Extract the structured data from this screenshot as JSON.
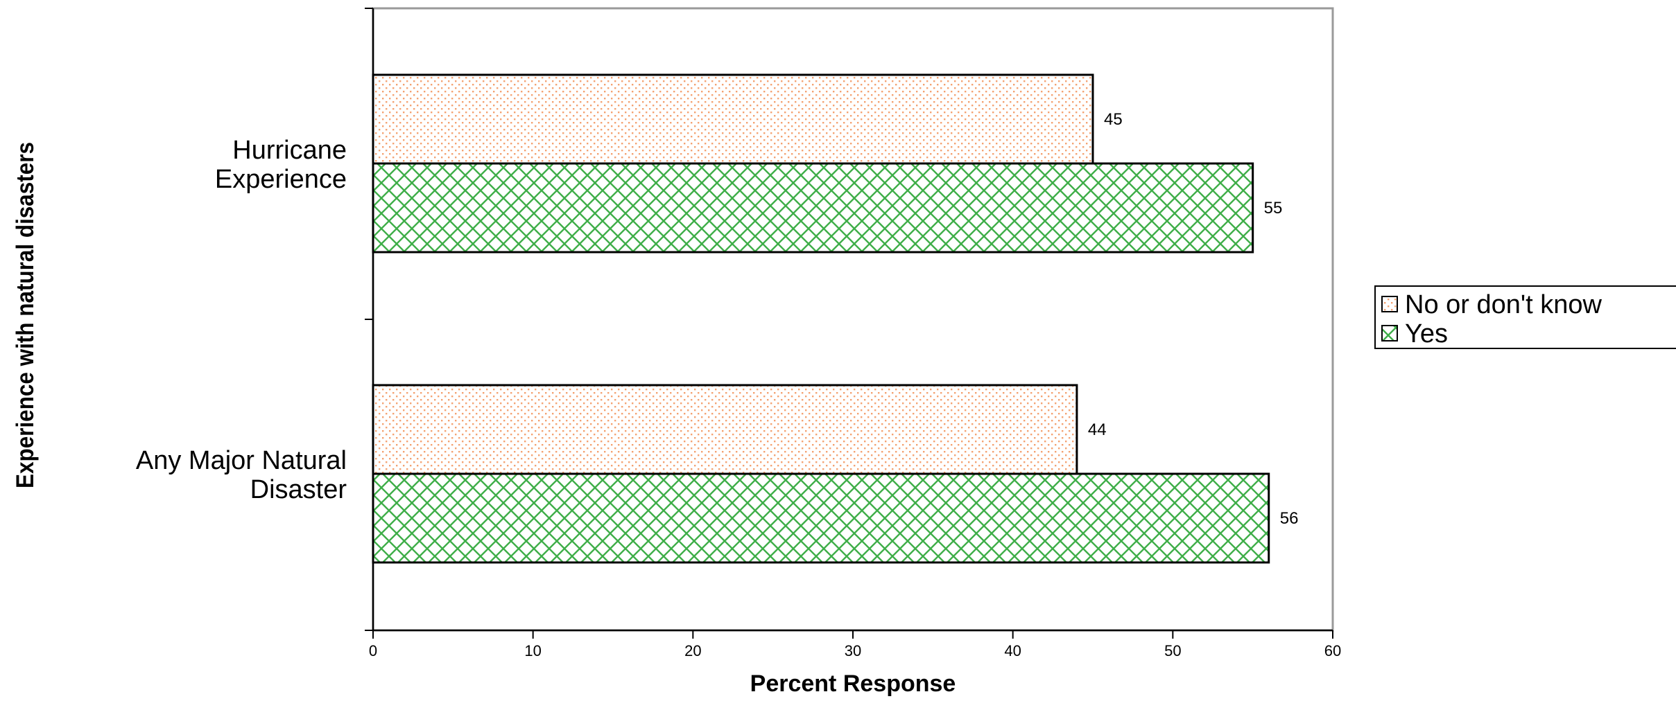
{
  "chart_data": {
    "type": "bar",
    "orientation": "horizontal",
    "categories": [
      "Hurricane Experience",
      "Any Major Natural Disaster"
    ],
    "category_lines": [
      [
        "Hurricane",
        "Experience"
      ],
      [
        "Any Major Natural",
        "Disaster"
      ]
    ],
    "series": [
      {
        "name": "No or don't know",
        "values": [
          45,
          44
        ],
        "color": "#f4a272",
        "pattern": "dots"
      },
      {
        "name": "Yes",
        "values": [
          55,
          56
        ],
        "color": "#3fae49",
        "pattern": "crosshatch"
      }
    ],
    "data_labels": [
      [
        "45",
        "44"
      ],
      [
        "55",
        "56"
      ]
    ],
    "xlabel": "Percent Response",
    "ylabel": "Experience with natural disasters",
    "xlim": [
      0,
      60
    ],
    "xticks": [
      0,
      10,
      20,
      30,
      40,
      50,
      60
    ],
    "xtick_labels": [
      "0",
      "10",
      "20",
      "30",
      "40",
      "50",
      "60"
    ],
    "grid": false,
    "legend_position": "right"
  }
}
